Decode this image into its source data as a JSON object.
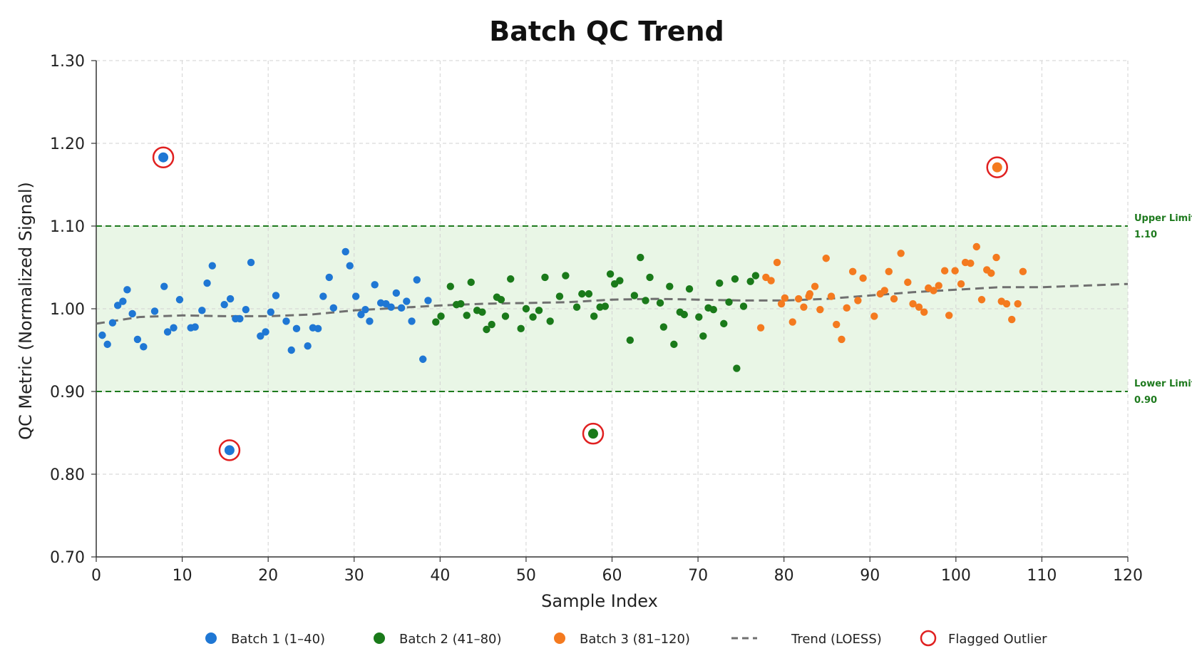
{
  "chart_data": {
    "type": "scatter",
    "title": "Batch QC Trend",
    "xlabel": "Sample Index",
    "ylabel": "QC Metric (Normalized Signal)",
    "xlim": [
      0,
      120
    ],
    "ylim": [
      0.7,
      1.3
    ],
    "x_ticks": [
      "0",
      "10",
      "20",
      "30",
      "40",
      "50",
      "60",
      "70",
      "80",
      "90",
      "100",
      "110",
      "120"
    ],
    "y_ticks": [
      "0.70",
      "0.80",
      "0.90",
      "1.00",
      "1.10",
      "1.20",
      "1.30"
    ],
    "grid": true,
    "legend_position": "bottom",
    "limits": {
      "upper": {
        "label": "Upper Limit",
        "value_label": "1.10",
        "value": 1.1
      },
      "lower": {
        "label": "Lower Limit",
        "value_label": "0.90",
        "value": 0.9
      },
      "band_color": "#e9f6e6",
      "line_color": "#1e7a1e"
    },
    "series": [
      {
        "name": "Batch 1 (1–40)",
        "color": "#1f77d4",
        "points": [
          [
            0.7,
            0.968
          ],
          [
            1.3,
            0.957
          ],
          [
            1.9,
            0.983
          ],
          [
            2.5,
            1.004
          ],
          [
            3.1,
            1.009
          ],
          [
            3.6,
            1.023
          ],
          [
            4.2,
            0.994
          ],
          [
            4.8,
            0.963
          ],
          [
            5.5,
            0.954
          ],
          [
            6.8,
            0.997
          ],
          [
            7.9,
            1.027
          ],
          [
            8.3,
            0.972
          ],
          [
            9.0,
            0.977
          ],
          [
            9.7,
            1.011
          ],
          [
            11.0,
            0.977
          ],
          [
            11.5,
            0.978
          ],
          [
            12.3,
            0.998
          ],
          [
            12.9,
            1.031
          ],
          [
            13.5,
            1.052
          ],
          [
            14.9,
            1.005
          ],
          [
            15.6,
            1.012
          ],
          [
            16.2,
            0.988
          ],
          [
            16.7,
            0.988
          ],
          [
            17.4,
            0.999
          ],
          [
            18.0,
            1.056
          ],
          [
            19.1,
            0.967
          ],
          [
            19.7,
            0.972
          ],
          [
            20.3,
            0.996
          ],
          [
            20.9,
            1.016
          ],
          [
            22.1,
            0.985
          ],
          [
            22.7,
            0.95
          ],
          [
            23.3,
            0.976
          ],
          [
            24.6,
            0.955
          ],
          [
            25.2,
            0.977
          ],
          [
            25.8,
            0.976
          ],
          [
            26.4,
            1.015
          ],
          [
            27.1,
            1.038
          ],
          [
            27.6,
            1.001
          ],
          [
            29.0,
            1.069
          ],
          [
            29.5,
            1.052
          ],
          [
            30.2,
            1.015
          ],
          [
            30.8,
            0.993
          ],
          [
            31.3,
            0.999
          ],
          [
            31.8,
            0.985
          ],
          [
            32.4,
            1.029
          ],
          [
            33.1,
            1.007
          ],
          [
            33.7,
            1.006
          ],
          [
            34.3,
            1.002
          ],
          [
            34.9,
            1.019
          ],
          [
            35.5,
            1.001
          ],
          [
            36.1,
            1.009
          ],
          [
            36.7,
            0.985
          ],
          [
            37.3,
            1.035
          ],
          [
            38.0,
            0.939
          ],
          [
            38.6,
            1.01
          ]
        ]
      },
      {
        "name": "Batch 2 (41–80)",
        "color": "#1a7a1a",
        "points": [
          [
            39.5,
            0.984
          ],
          [
            40.1,
            0.991
          ],
          [
            41.2,
            1.027
          ],
          [
            41.9,
            1.005
          ],
          [
            42.4,
            1.006
          ],
          [
            43.1,
            0.992
          ],
          [
            43.6,
            1.032
          ],
          [
            44.3,
            0.998
          ],
          [
            44.9,
            0.996
          ],
          [
            45.4,
            0.975
          ],
          [
            46.0,
            0.981
          ],
          [
            46.6,
            1.014
          ],
          [
            47.1,
            1.011
          ],
          [
            47.6,
            0.991
          ],
          [
            48.2,
            1.036
          ],
          [
            49.4,
            0.976
          ],
          [
            50.0,
            1.0
          ],
          [
            50.8,
            0.99
          ],
          [
            51.5,
            0.998
          ],
          [
            52.2,
            1.038
          ],
          [
            52.8,
            0.985
          ],
          [
            53.9,
            1.015
          ],
          [
            54.6,
            1.04
          ],
          [
            55.9,
            1.002
          ],
          [
            56.5,
            1.018
          ],
          [
            57.3,
            1.018
          ],
          [
            57.9,
            0.991
          ],
          [
            58.6,
            1.002
          ],
          [
            59.2,
            1.003
          ],
          [
            59.8,
            1.042
          ],
          [
            60.3,
            1.03
          ],
          [
            60.9,
            1.034
          ],
          [
            62.1,
            0.962
          ],
          [
            62.6,
            1.016
          ],
          [
            63.3,
            1.062
          ],
          [
            63.9,
            1.01
          ],
          [
            64.4,
            1.038
          ],
          [
            65.6,
            1.007
          ],
          [
            66.0,
            0.978
          ],
          [
            66.7,
            1.027
          ],
          [
            67.2,
            0.957
          ],
          [
            67.9,
            0.996
          ],
          [
            68.4,
            0.993
          ],
          [
            69.0,
            1.024
          ],
          [
            70.1,
            0.99
          ],
          [
            70.6,
            0.967
          ],
          [
            71.2,
            1.001
          ],
          [
            71.8,
            0.999
          ],
          [
            72.5,
            1.031
          ],
          [
            73.0,
            0.982
          ],
          [
            73.6,
            1.008
          ],
          [
            74.3,
            1.036
          ],
          [
            74.5,
            0.928
          ],
          [
            75.3,
            1.003
          ],
          [
            76.1,
            1.033
          ],
          [
            76.7,
            1.04
          ]
        ]
      },
      {
        "name": "Batch 3 (81–120)",
        "color": "#f47a1f",
        "points": [
          [
            77.3,
            0.977
          ],
          [
            77.9,
            1.038
          ],
          [
            78.5,
            1.034
          ],
          [
            79.2,
            1.056
          ],
          [
            79.7,
            1.006
          ],
          [
            80.1,
            1.013
          ],
          [
            81.0,
            0.984
          ],
          [
            81.7,
            1.012
          ],
          [
            82.3,
            1.002
          ],
          [
            82.9,
            1.015
          ],
          [
            83.0,
            1.018
          ],
          [
            83.6,
            1.027
          ],
          [
            84.2,
            0.999
          ],
          [
            84.9,
            1.061
          ],
          [
            85.5,
            1.015
          ],
          [
            86.1,
            0.981
          ],
          [
            86.7,
            0.963
          ],
          [
            87.3,
            1.001
          ],
          [
            88.0,
            1.045
          ],
          [
            88.6,
            1.01
          ],
          [
            89.2,
            1.037
          ],
          [
            90.5,
            0.991
          ],
          [
            91.2,
            1.018
          ],
          [
            91.7,
            1.022
          ],
          [
            92.2,
            1.045
          ],
          [
            92.8,
            1.012
          ],
          [
            93.6,
            1.067
          ],
          [
            94.4,
            1.032
          ],
          [
            95.0,
            1.006
          ],
          [
            95.7,
            1.002
          ],
          [
            96.3,
            0.996
          ],
          [
            96.8,
            1.025
          ],
          [
            97.4,
            1.022
          ],
          [
            98.0,
            1.028
          ],
          [
            98.7,
            1.046
          ],
          [
            99.2,
            0.992
          ],
          [
            99.9,
            1.046
          ],
          [
            100.6,
            1.03
          ],
          [
            101.1,
            1.056
          ],
          [
            101.7,
            1.055
          ],
          [
            102.4,
            1.075
          ],
          [
            103.0,
            1.011
          ],
          [
            103.6,
            1.047
          ],
          [
            104.1,
            1.043
          ],
          [
            104.7,
            1.062
          ],
          [
            105.3,
            1.009
          ],
          [
            105.9,
            1.006
          ],
          [
            106.5,
            0.987
          ],
          [
            107.2,
            1.006
          ],
          [
            107.8,
            1.045
          ]
        ]
      }
    ],
    "outliers": [
      {
        "batch": "Batch 1 (1–40)",
        "x": 7.8,
        "y": 1.183,
        "color": "#1f77d4"
      },
      {
        "batch": "Batch 1 (1–40)",
        "x": 15.5,
        "y": 0.829,
        "color": "#1f77d4"
      },
      {
        "batch": "Batch 2 (41–80)",
        "x": 57.8,
        "y": 0.849,
        "color": "#1a7a1a"
      },
      {
        "batch": "Batch 3 (81–120)",
        "x": 104.8,
        "y": 1.171,
        "color": "#f47a1f"
      }
    ],
    "outlier_ring_color": "#e02020",
    "trend": {
      "name": "Trend (LOESS)",
      "color": "#707070",
      "points": [
        [
          0,
          0.982
        ],
        [
          5,
          0.99
        ],
        [
          10,
          0.992
        ],
        [
          15,
          0.991
        ],
        [
          20,
          0.991
        ],
        [
          25,
          0.993
        ],
        [
          30,
          0.998
        ],
        [
          35,
          1.001
        ],
        [
          40,
          1.004
        ],
        [
          45,
          1.006
        ],
        [
          50,
          1.007
        ],
        [
          55,
          1.008
        ],
        [
          60,
          1.011
        ],
        [
          65,
          1.012
        ],
        [
          70,
          1.011
        ],
        [
          75,
          1.01
        ],
        [
          80,
          1.01
        ],
        [
          85,
          1.012
        ],
        [
          90,
          1.016
        ],
        [
          95,
          1.02
        ],
        [
          100,
          1.023
        ],
        [
          105,
          1.026
        ],
        [
          110,
          1.026
        ],
        [
          115,
          1.028
        ],
        [
          120,
          1.03
        ]
      ]
    },
    "legend": [
      {
        "label": "Batch 1 (1–40)",
        "kind": "dot",
        "color": "#1f77d4"
      },
      {
        "label": "Batch 2 (41–80)",
        "kind": "dot",
        "color": "#1a7a1a"
      },
      {
        "label": "Batch 3 (81–120)",
        "kind": "dot",
        "color": "#f47a1f"
      },
      {
        "label": "Trend (LOESS)",
        "kind": "dash",
        "color": "#707070"
      },
      {
        "label": "Flagged Outlier",
        "kind": "ring",
        "color": "#e02020"
      }
    ]
  }
}
